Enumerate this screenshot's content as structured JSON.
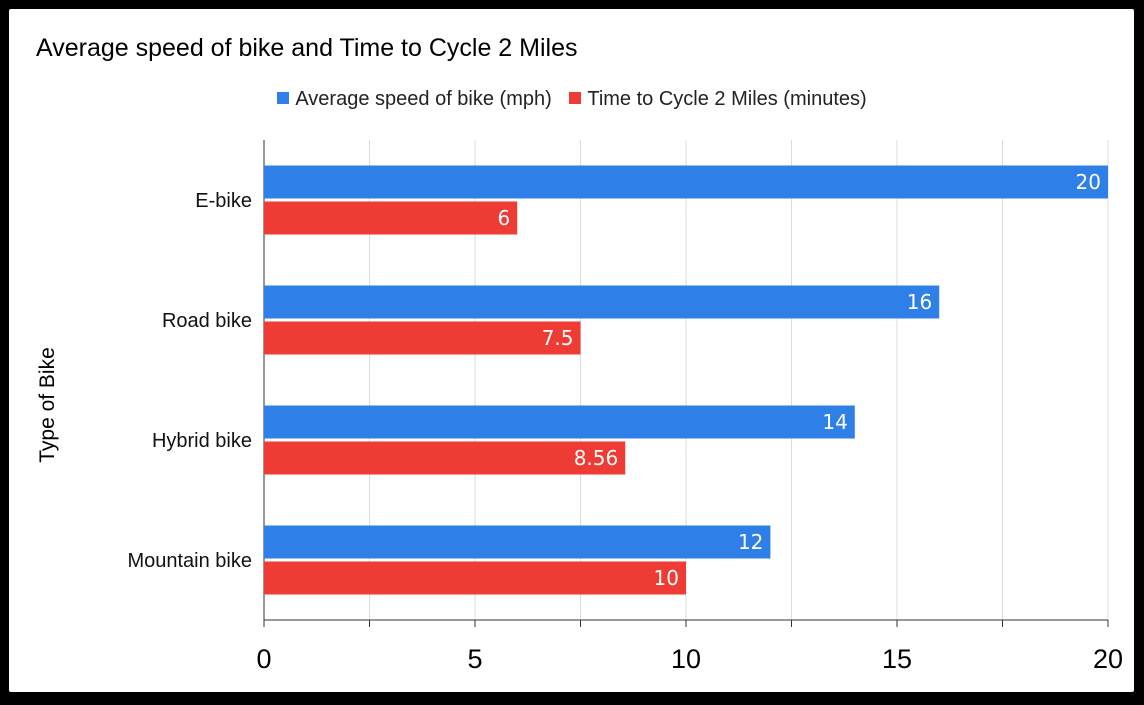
{
  "chart_data": {
    "type": "bar",
    "orientation": "horizontal",
    "title": "Average speed of bike and Time to Cycle 2 Miles",
    "categories": [
      "E-bike",
      "Road bike",
      "Hybrid bike",
      "Mountain bike"
    ],
    "series": [
      {
        "name": "Average speed of bike (mph)",
        "color": "#2f7fe9",
        "values": [
          20,
          16,
          14,
          12
        ],
        "labels": [
          "20",
          "16",
          "14",
          "12"
        ]
      },
      {
        "name": "Time to Cycle 2 Miles (minutes)",
        "color": "#ee3b34",
        "values": [
          6,
          7.5,
          8.56,
          10
        ],
        "labels": [
          "6",
          "7.5",
          "8.56",
          "10"
        ]
      }
    ],
    "xlim": [
      0,
      20
    ],
    "xticks": [
      0,
      5,
      10,
      15,
      20
    ],
    "xlabel": "",
    "ylabel": "Type of Bike",
    "legend_position": "top-center",
    "grid": true
  }
}
